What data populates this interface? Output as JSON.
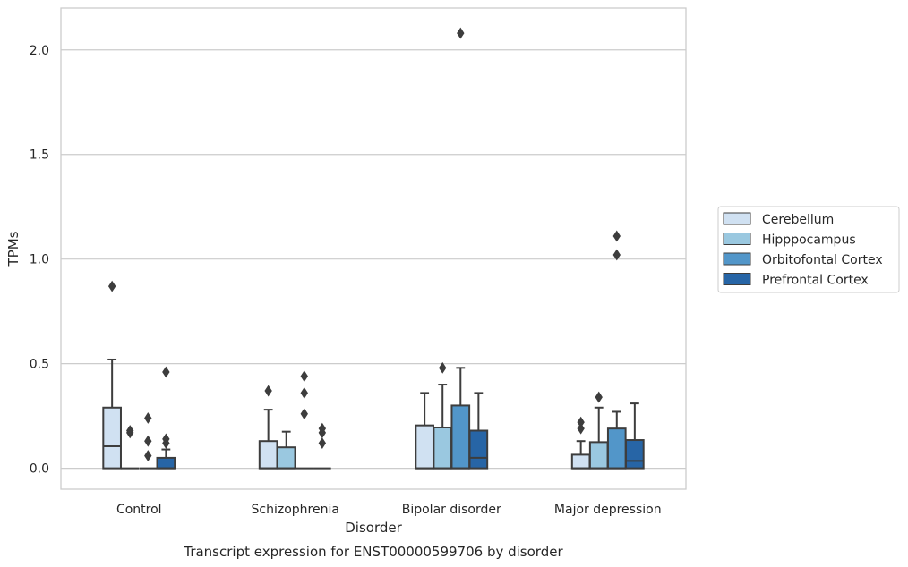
{
  "chart_data": {
    "type": "box",
    "title": "Transcript expression for ENST00000599706 by disorder",
    "xlabel": "Disorder",
    "ylabel": "TPMs",
    "ylim": [
      -0.1,
      2.2
    ],
    "yticks": [
      0.0,
      0.5,
      1.0,
      1.5,
      2.0
    ],
    "ytick_labels": [
      "0.0",
      "0.5",
      "1.0",
      "1.5",
      "2.0"
    ],
    "grid": "horizontal",
    "legend_position": "right",
    "categories": [
      "Control",
      "Schizophrenia",
      "Bipolar disorder",
      "Major depression"
    ],
    "series": [
      {
        "name": "Cerebellum",
        "color": "#d0e1f2",
        "boxes": [
          {
            "q1": 0.0,
            "median": 0.105,
            "q3": 0.29,
            "whisker_low": 0.0,
            "whisker_high": 0.52,
            "outliers": [
              0.87
            ]
          },
          {
            "q1": 0.0,
            "median": 0.0,
            "q3": 0.13,
            "whisker_low": 0.0,
            "whisker_high": 0.28,
            "outliers": [
              0.37
            ]
          },
          {
            "q1": 0.0,
            "median": 0.0,
            "q3": 0.205,
            "whisker_low": 0.0,
            "whisker_high": 0.36,
            "outliers": []
          },
          {
            "q1": 0.0,
            "median": 0.0,
            "q3": 0.065,
            "whisker_low": 0.0,
            "whisker_high": 0.13,
            "outliers": [
              0.19,
              0.22
            ]
          }
        ]
      },
      {
        "name": "Hipppocampus",
        "color": "#9ac8e0",
        "boxes": [
          {
            "q1": 0.0,
            "median": 0.0,
            "q3": 0.0,
            "whisker_low": 0.0,
            "whisker_high": 0.0,
            "outliers": [
              0.17,
              0.18
            ]
          },
          {
            "q1": 0.0,
            "median": 0.0,
            "q3": 0.1,
            "whisker_low": 0.0,
            "whisker_high": 0.175,
            "outliers": []
          },
          {
            "q1": 0.0,
            "median": 0.0,
            "q3": 0.195,
            "whisker_low": 0.0,
            "whisker_high": 0.4,
            "outliers": [
              0.48
            ]
          },
          {
            "q1": 0.0,
            "median": 0.0,
            "q3": 0.125,
            "whisker_low": 0.0,
            "whisker_high": 0.29,
            "outliers": [
              0.34
            ]
          }
        ]
      },
      {
        "name": "Orbitofontal Cortex",
        "color": "#5296c9",
        "boxes": [
          {
            "q1": 0.0,
            "median": 0.0,
            "q3": 0.0,
            "whisker_low": 0.0,
            "whisker_high": 0.0,
            "outliers": [
              0.06,
              0.13,
              0.24
            ]
          },
          {
            "q1": 0.0,
            "median": 0.0,
            "q3": 0.0,
            "whisker_low": 0.0,
            "whisker_high": 0.0,
            "outliers": [
              0.26,
              0.36,
              0.44
            ]
          },
          {
            "q1": 0.0,
            "median": 0.0,
            "q3": 0.3,
            "whisker_low": 0.0,
            "whisker_high": 0.48,
            "outliers": [
              2.08
            ]
          },
          {
            "q1": 0.0,
            "median": 0.0,
            "q3": 0.19,
            "whisker_low": 0.0,
            "whisker_high": 0.27,
            "outliers": [
              1.02,
              1.11
            ]
          }
        ]
      },
      {
        "name": "Prefrontal Cortex",
        "color": "#2765a6",
        "boxes": [
          {
            "q1": 0.0,
            "median": 0.0,
            "q3": 0.05,
            "whisker_low": 0.0,
            "whisker_high": 0.09,
            "outliers": [
              0.12,
              0.14,
              0.46
            ]
          },
          {
            "q1": 0.0,
            "median": 0.0,
            "q3": 0.0,
            "whisker_low": 0.0,
            "whisker_high": 0.0,
            "outliers": [
              0.12,
              0.17,
              0.19
            ]
          },
          {
            "q1": 0.0,
            "median": 0.05,
            "q3": 0.18,
            "whisker_low": 0.0,
            "whisker_high": 0.36,
            "outliers": []
          },
          {
            "q1": 0.0,
            "median": 0.035,
            "q3": 0.135,
            "whisker_low": 0.0,
            "whisker_high": 0.31,
            "outliers": []
          }
        ]
      }
    ]
  }
}
